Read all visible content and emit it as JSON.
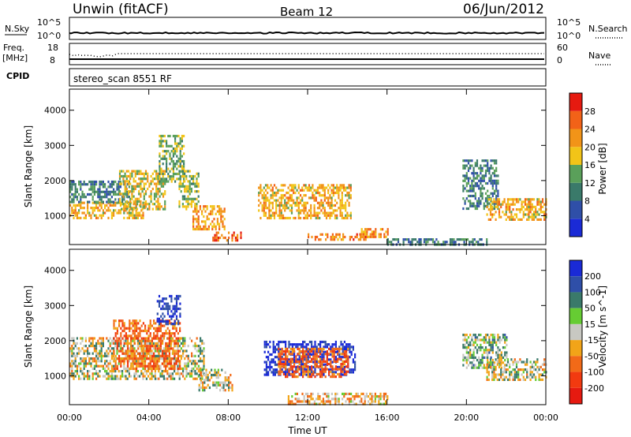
{
  "header": {
    "title": "Unwin (fitACF)",
    "beam": "Beam 12",
    "date": "06/Jun/2012"
  },
  "summary": {
    "nsky_label": "N.Sky",
    "nsearch_label": "N.Search",
    "nsky_ticks": [
      "10^5",
      "10^0"
    ],
    "nsearch_ticks": [
      "10^5",
      "10^0"
    ],
    "freq_label": "Freq.",
    "freq_unit": "[MHz]",
    "freq_ticks": [
      "18",
      "8"
    ],
    "nave_label": "Nave",
    "nave_ticks": [
      "60",
      "0"
    ],
    "cpid_label": "CPID",
    "cpid_value": "stereo_scan 8551 RF"
  },
  "chart_data": [
    {
      "type": "heatmap",
      "name": "power",
      "ylabel": "Slant Range [km]",
      "yticks": [
        1000,
        2000,
        3000,
        4000
      ],
      "ylim": [
        180,
        4600
      ],
      "xlim": [
        0,
        24
      ],
      "colorbar": {
        "label": "Power [dB]",
        "ticks": [
          "4",
          "8",
          "12",
          "16",
          "20",
          "24",
          "28"
        ],
        "range": [
          0,
          31
        ]
      },
      "echo_regions": [
        {
          "t0": 0.0,
          "t1": 3.8,
          "r0": 900,
          "r1": 1400,
          "level": 20
        },
        {
          "t0": 0.0,
          "t1": 3.0,
          "r0": 1400,
          "r1": 2000,
          "level": 10
        },
        {
          "t0": 2.5,
          "t1": 4.8,
          "r0": 1200,
          "r1": 2300,
          "level": 18
        },
        {
          "t0": 4.5,
          "t1": 5.8,
          "r0": 2000,
          "r1": 3300,
          "level": 14
        },
        {
          "t0": 5.5,
          "t1": 6.5,
          "r0": 1200,
          "r1": 2300,
          "level": 15
        },
        {
          "t0": 6.2,
          "t1": 7.8,
          "r0": 600,
          "r1": 1300,
          "level": 21
        },
        {
          "t0": 7.2,
          "t1": 8.6,
          "r0": 280,
          "r1": 550,
          "level": 26
        },
        {
          "t0": 9.5,
          "t1": 14.2,
          "r0": 900,
          "r1": 1900,
          "level": 20
        },
        {
          "t0": 12.0,
          "t1": 15.0,
          "r0": 300,
          "r1": 500,
          "level": 24
        },
        {
          "t0": 14.6,
          "t1": 16.0,
          "r0": 380,
          "r1": 650,
          "level": 22
        },
        {
          "t0": 16.0,
          "t1": 21.0,
          "r0": 200,
          "r1": 360,
          "level": 10
        },
        {
          "t0": 19.8,
          "t1": 21.6,
          "r0": 1200,
          "r1": 2600,
          "level": 10
        },
        {
          "t0": 21.0,
          "t1": 24.0,
          "r0": 900,
          "r1": 1500,
          "level": 20
        }
      ]
    },
    {
      "type": "heatmap",
      "name": "velocity",
      "ylabel": "Slant Range [km]",
      "xlabel": "Time UT",
      "yticks": [
        1000,
        2000,
        3000,
        4000
      ],
      "xticks": [
        "00:00",
        "04:00",
        "08:00",
        "12:00",
        "16:00",
        "20:00",
        "00:00"
      ],
      "ylim": [
        180,
        4600
      ],
      "xlim": [
        0,
        24
      ],
      "colorbar": {
        "label": "Velocity [m s^-1]",
        "ticks": [
          "200",
          "100",
          "50",
          "15",
          "-15",
          "-50",
          "-100",
          "-200"
        ],
        "range": [
          -250,
          250
        ]
      },
      "echo_regions": [
        {
          "t0": 0.0,
          "t1": 6.8,
          "r0": 900,
          "r1": 2100,
          "level": 0
        },
        {
          "t0": 2.2,
          "t1": 5.6,
          "r0": 1200,
          "r1": 2600,
          "level": -80
        },
        {
          "t0": 4.4,
          "t1": 5.6,
          "r0": 2500,
          "r1": 3300,
          "level": 140
        },
        {
          "t0": 6.5,
          "t1": 8.2,
          "r0": 600,
          "r1": 1200,
          "level": 0
        },
        {
          "t0": 9.8,
          "t1": 14.4,
          "r0": 1000,
          "r1": 2000,
          "level": 180
        },
        {
          "t0": 10.5,
          "t1": 14.0,
          "r0": 1000,
          "r1": 1800,
          "level": -90
        },
        {
          "t0": 11.0,
          "t1": 16.0,
          "r0": 220,
          "r1": 520,
          "level": -30
        },
        {
          "t0": 19.8,
          "t1": 22.0,
          "r0": 1200,
          "r1": 2200,
          "level": 20
        },
        {
          "t0": 21.0,
          "t1": 24.0,
          "r0": 900,
          "r1": 1500,
          "level": 0
        }
      ]
    }
  ]
}
